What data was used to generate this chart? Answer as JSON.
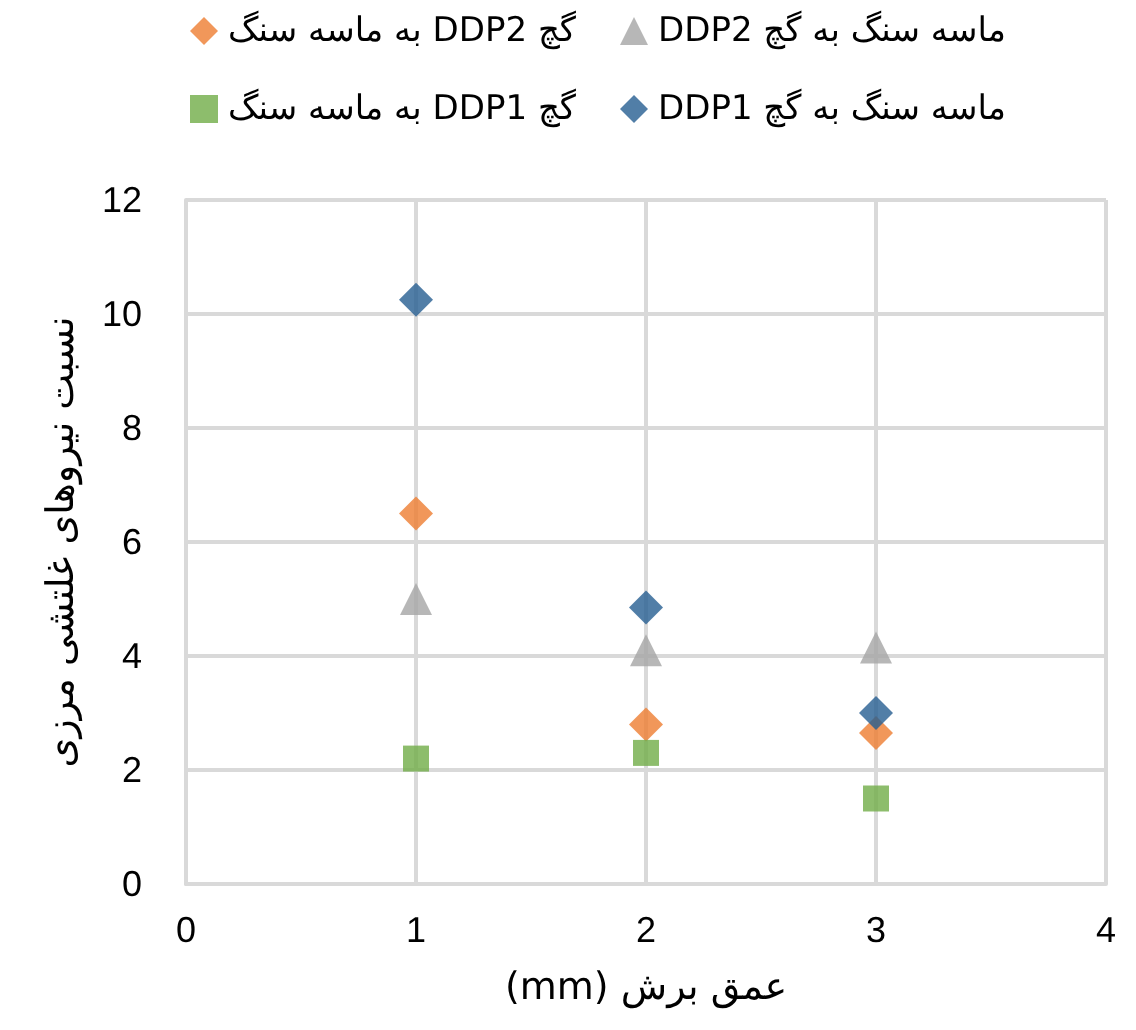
{
  "chart_data": {
    "type": "scatter",
    "xlabel": "عمق برش (mm)",
    "ylabel": "نسبت نیروهای غلتشی مرزی",
    "x": [
      1,
      2,
      3
    ],
    "series": [
      {
        "name": "گچ DDP2 به ماسه سنگ",
        "color": "#ed7d31",
        "marker": "diamond",
        "values": [
          6.5,
          2.8,
          2.65
        ]
      },
      {
        "name": "ماسه سنگ به گچ DDP2",
        "color": "#a5a5a5",
        "marker": "triangle",
        "values": [
          5.0,
          4.1,
          4.15
        ]
      },
      {
        "name": "گچ DDP1 به ماسه سنگ",
        "color": "#70ad47",
        "marker": "square",
        "values": [
          2.2,
          2.3,
          1.5
        ]
      },
      {
        "name": "ماسه سنگ به گچ DDP1",
        "color": "#255e91",
        "marker": "diamond",
        "values": [
          10.25,
          4.85,
          3.0
        ]
      }
    ],
    "xlim": [
      0,
      4
    ],
    "xticks": [
      0,
      1,
      2,
      3,
      4
    ],
    "ylim": [
      0,
      12
    ],
    "yticks": [
      0,
      2,
      4,
      6,
      8,
      10,
      12
    ],
    "grid": true,
    "legend": "top"
  }
}
